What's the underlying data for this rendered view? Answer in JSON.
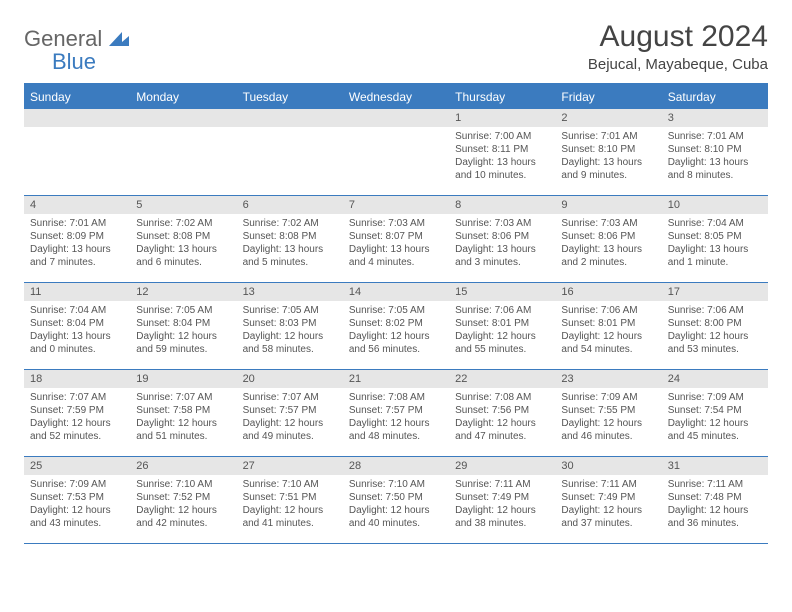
{
  "logo": {
    "text1": "General",
    "text2": "Blue"
  },
  "title": "August 2024",
  "location": "Bejucal, Mayabeque, Cuba",
  "colors": {
    "accent": "#3b7bbf",
    "header_bg": "#3b7bbf",
    "daynum_bg": "#e6e6e6",
    "text": "#444444",
    "body_text": "#555555"
  },
  "weekdays": [
    "Sunday",
    "Monday",
    "Tuesday",
    "Wednesday",
    "Thursday",
    "Friday",
    "Saturday"
  ],
  "weeks": [
    [
      null,
      null,
      null,
      null,
      {
        "n": "1",
        "sr": "7:00 AM",
        "ss": "8:11 PM",
        "dl": "13 hours and 10 minutes."
      },
      {
        "n": "2",
        "sr": "7:01 AM",
        "ss": "8:10 PM",
        "dl": "13 hours and 9 minutes."
      },
      {
        "n": "3",
        "sr": "7:01 AM",
        "ss": "8:10 PM",
        "dl": "13 hours and 8 minutes."
      }
    ],
    [
      {
        "n": "4",
        "sr": "7:01 AM",
        "ss": "8:09 PM",
        "dl": "13 hours and 7 minutes."
      },
      {
        "n": "5",
        "sr": "7:02 AM",
        "ss": "8:08 PM",
        "dl": "13 hours and 6 minutes."
      },
      {
        "n": "6",
        "sr": "7:02 AM",
        "ss": "8:08 PM",
        "dl": "13 hours and 5 minutes."
      },
      {
        "n": "7",
        "sr": "7:03 AM",
        "ss": "8:07 PM",
        "dl": "13 hours and 4 minutes."
      },
      {
        "n": "8",
        "sr": "7:03 AM",
        "ss": "8:06 PM",
        "dl": "13 hours and 3 minutes."
      },
      {
        "n": "9",
        "sr": "7:03 AM",
        "ss": "8:06 PM",
        "dl": "13 hours and 2 minutes."
      },
      {
        "n": "10",
        "sr": "7:04 AM",
        "ss": "8:05 PM",
        "dl": "13 hours and 1 minute."
      }
    ],
    [
      {
        "n": "11",
        "sr": "7:04 AM",
        "ss": "8:04 PM",
        "dl": "13 hours and 0 minutes."
      },
      {
        "n": "12",
        "sr": "7:05 AM",
        "ss": "8:04 PM",
        "dl": "12 hours and 59 minutes."
      },
      {
        "n": "13",
        "sr": "7:05 AM",
        "ss": "8:03 PM",
        "dl": "12 hours and 58 minutes."
      },
      {
        "n": "14",
        "sr": "7:05 AM",
        "ss": "8:02 PM",
        "dl": "12 hours and 56 minutes."
      },
      {
        "n": "15",
        "sr": "7:06 AM",
        "ss": "8:01 PM",
        "dl": "12 hours and 55 minutes."
      },
      {
        "n": "16",
        "sr": "7:06 AM",
        "ss": "8:01 PM",
        "dl": "12 hours and 54 minutes."
      },
      {
        "n": "17",
        "sr": "7:06 AM",
        "ss": "8:00 PM",
        "dl": "12 hours and 53 minutes."
      }
    ],
    [
      {
        "n": "18",
        "sr": "7:07 AM",
        "ss": "7:59 PM",
        "dl": "12 hours and 52 minutes."
      },
      {
        "n": "19",
        "sr": "7:07 AM",
        "ss": "7:58 PM",
        "dl": "12 hours and 51 minutes."
      },
      {
        "n": "20",
        "sr": "7:07 AM",
        "ss": "7:57 PM",
        "dl": "12 hours and 49 minutes."
      },
      {
        "n": "21",
        "sr": "7:08 AM",
        "ss": "7:57 PM",
        "dl": "12 hours and 48 minutes."
      },
      {
        "n": "22",
        "sr": "7:08 AM",
        "ss": "7:56 PM",
        "dl": "12 hours and 47 minutes."
      },
      {
        "n": "23",
        "sr": "7:09 AM",
        "ss": "7:55 PM",
        "dl": "12 hours and 46 minutes."
      },
      {
        "n": "24",
        "sr": "7:09 AM",
        "ss": "7:54 PM",
        "dl": "12 hours and 45 minutes."
      }
    ],
    [
      {
        "n": "25",
        "sr": "7:09 AM",
        "ss": "7:53 PM",
        "dl": "12 hours and 43 minutes."
      },
      {
        "n": "26",
        "sr": "7:10 AM",
        "ss": "7:52 PM",
        "dl": "12 hours and 42 minutes."
      },
      {
        "n": "27",
        "sr": "7:10 AM",
        "ss": "7:51 PM",
        "dl": "12 hours and 41 minutes."
      },
      {
        "n": "28",
        "sr": "7:10 AM",
        "ss": "7:50 PM",
        "dl": "12 hours and 40 minutes."
      },
      {
        "n": "29",
        "sr": "7:11 AM",
        "ss": "7:49 PM",
        "dl": "12 hours and 38 minutes."
      },
      {
        "n": "30",
        "sr": "7:11 AM",
        "ss": "7:49 PM",
        "dl": "12 hours and 37 minutes."
      },
      {
        "n": "31",
        "sr": "7:11 AM",
        "ss": "7:48 PM",
        "dl": "12 hours and 36 minutes."
      }
    ]
  ],
  "labels": {
    "sunrise": "Sunrise:",
    "sunset": "Sunset:",
    "daylight": "Daylight:"
  }
}
